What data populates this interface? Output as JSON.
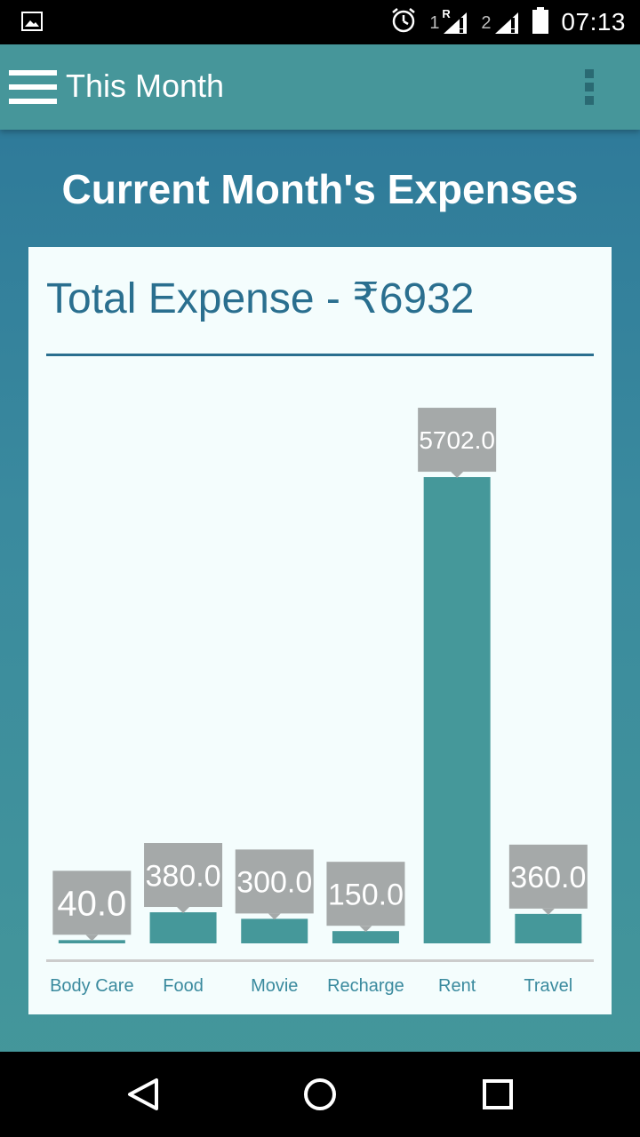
{
  "status_bar": {
    "time": "07:13",
    "sim1_label": "1",
    "sim1_roaming": "R",
    "sim2_label": "2",
    "icons": [
      "image-icon",
      "alarm-icon",
      "signal-icon",
      "signal-icon",
      "battery-icon"
    ]
  },
  "app_bar": {
    "title": "This Month"
  },
  "page": {
    "heading": "Current Month's Expenses",
    "total_label": "Total Expense - ₹6932"
  },
  "colors": {
    "bar": "#45989a",
    "label_box": "#a5a9a9",
    "axis_text": "#3a8a9e",
    "header_text": "#2a6f8f"
  },
  "chart_data": {
    "type": "bar",
    "categories": [
      "Body Care",
      "Food",
      "Movie",
      "Recharge",
      "Rent",
      "Travel"
    ],
    "values": [
      40.0,
      380.0,
      300.0,
      150.0,
      5702.0,
      360.0
    ],
    "value_labels": [
      "40.0",
      "380.0",
      "300.0",
      "150.0",
      "5702.0",
      "360.0"
    ],
    "title": "",
    "xlabel": "",
    "ylabel": "",
    "ylim": [
      0,
      6300
    ],
    "grid": false
  },
  "nav_bar": {
    "buttons": [
      "back-icon",
      "home-icon",
      "recents-icon"
    ]
  }
}
